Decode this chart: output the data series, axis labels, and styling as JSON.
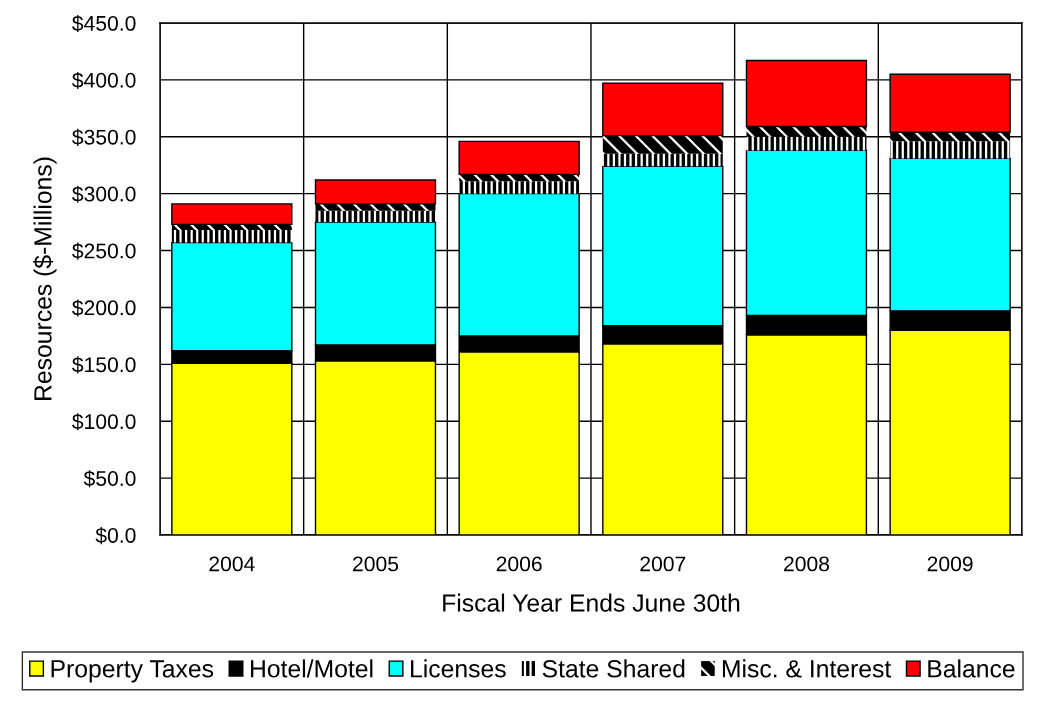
{
  "chart_data": {
    "type": "bar",
    "stacked": true,
    "categories": [
      "2004",
      "2005",
      "2006",
      "2007",
      "2008",
      "2009"
    ],
    "xlabel": "Fiscal Year Ends June 30th",
    "ylabel": "Resources ($-Millions)",
    "ylim": [
      0,
      450
    ],
    "yticks": [
      {
        "value": 0,
        "label": "$0.0"
      },
      {
        "value": 50,
        "label": "$50.0"
      },
      {
        "value": 100,
        "label": "$100.0"
      },
      {
        "value": 150,
        "label": "$150.0"
      },
      {
        "value": 200,
        "label": "$200.0"
      },
      {
        "value": 250,
        "label": "$250.0"
      },
      {
        "value": 300,
        "label": "$300.0"
      },
      {
        "value": 350,
        "label": "$350.0"
      },
      {
        "value": 400,
        "label": "$400.0"
      },
      {
        "value": 450,
        "label": "$450.0"
      }
    ],
    "grid": true,
    "legend": "bottom",
    "series": [
      {
        "name": "Property Taxes",
        "color": "#ffff00",
        "values": [
          151,
          153,
          161,
          168,
          176,
          180
        ]
      },
      {
        "name": "Hotel/Motel",
        "color": "#000000",
        "values": [
          11,
          14,
          14,
          16,
          17,
          17
        ]
      },
      {
        "name": "Licenses",
        "color": "#00ffff",
        "values": [
          95,
          108,
          125,
          140,
          145,
          134
        ]
      },
      {
        "name": "State Shared",
        "color": "#000000",
        "values": [
          11,
          10,
          11,
          11,
          12,
          15
        ]
      },
      {
        "name": "Misc. & Interest",
        "color": "#000000",
        "values": [
          5,
          6,
          6,
          16,
          9,
          8
        ]
      },
      {
        "name": "Balance",
        "color": "#ff0000",
        "values": [
          18,
          21,
          29,
          46,
          58,
          51
        ]
      }
    ]
  }
}
